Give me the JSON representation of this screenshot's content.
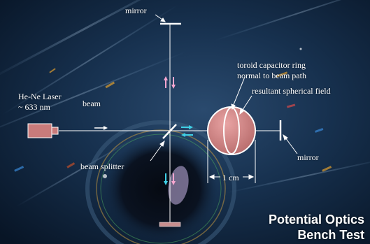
{
  "title": {
    "line1": "Potential Optics",
    "line2": "Bench Test"
  },
  "labels": {
    "mirror_top": "mirror",
    "laser_line1": "He-Ne Laser",
    "laser_line2": "~ 633 nm",
    "beam": "beam",
    "beam_splitter": "beam splitter",
    "toroid_line1": "toroid capacitor ring",
    "toroid_line2": "normal to beam path",
    "spherical_field": "resultant spherical field",
    "mirror_right": "mirror",
    "dimension": "1 cm"
  },
  "colors": {
    "beam": "#ffffff",
    "arrow_pink": "#f7a6cf",
    "arrow_cyan": "#3fd0e6",
    "sphere": "#d98a8a",
    "laser_body": "#c97b7b",
    "mirror_bottom": "#c98f8f"
  }
}
